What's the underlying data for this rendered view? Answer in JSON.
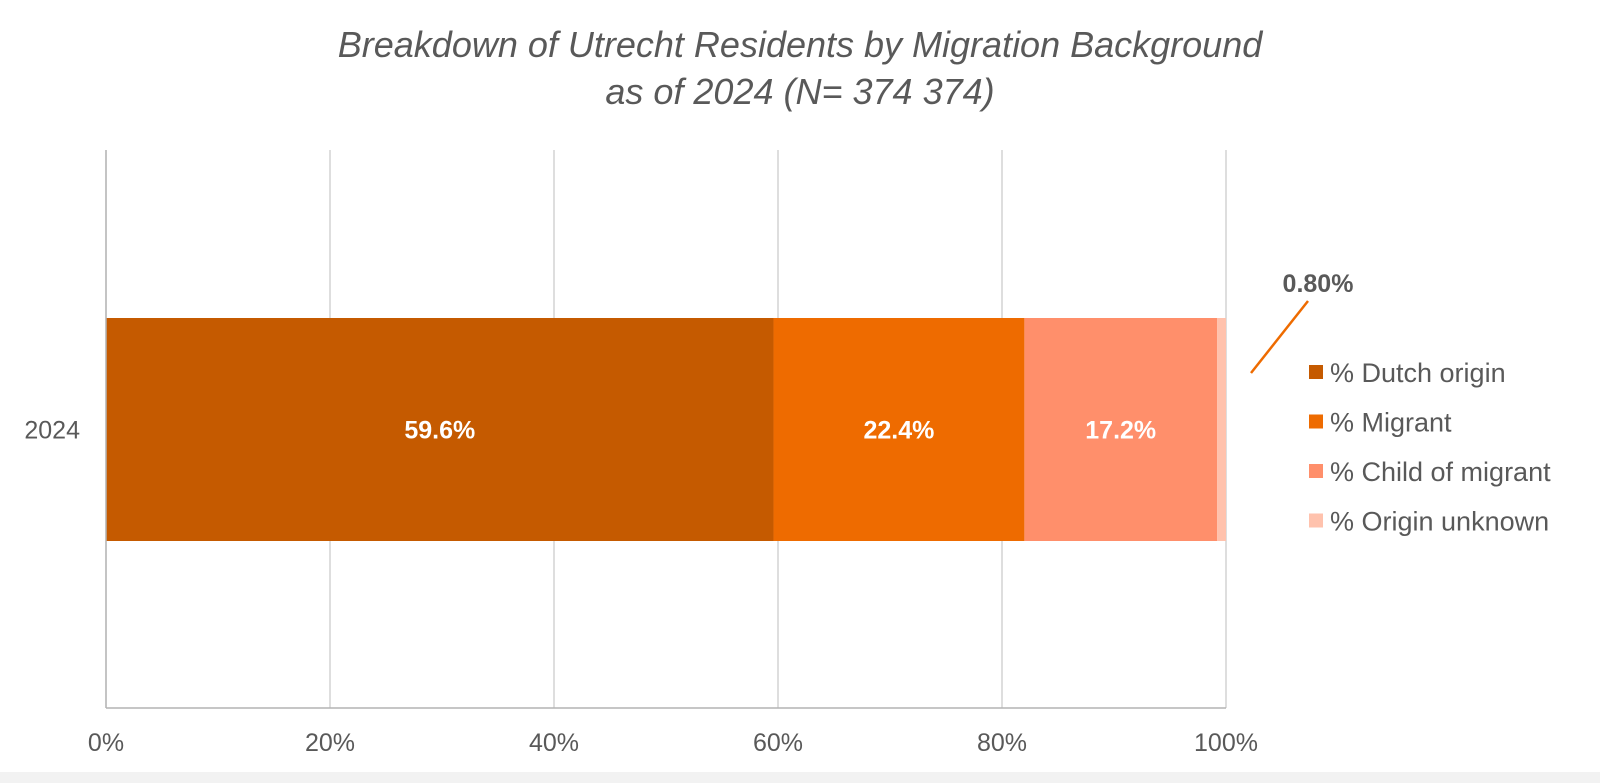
{
  "chart_data": {
    "type": "bar",
    "orientation": "horizontal",
    "stacked": "percent",
    "title_line1": "Breakdown of Utrecht Residents by Migration Background",
    "title_line2": "as of 2024 (N= 374 374)",
    "categories": [
      "2024"
    ],
    "series": [
      {
        "name": "% Dutch origin",
        "values": [
          59.6
        ],
        "label": "59.6%",
        "color": "#c55a00"
      },
      {
        "name": "% Migrant",
        "values": [
          22.4
        ],
        "label": "22.4%",
        "color": "#ee6b00"
      },
      {
        "name": "% Child of migrant",
        "values": [
          17.2
        ],
        "label": "17.2%",
        "color": "#ff8f6b"
      },
      {
        "name": "% Origin unknown",
        "values": [
          0.8
        ],
        "label": "0.80%",
        "color": "#ffc2ad"
      }
    ],
    "x_ticks": [
      "0%",
      "20%",
      "40%",
      "60%",
      "80%",
      "100%"
    ],
    "xlim": [
      0,
      100
    ],
    "grid": "vertical",
    "legend_position": "right",
    "callout_color": "#ee6b00"
  }
}
